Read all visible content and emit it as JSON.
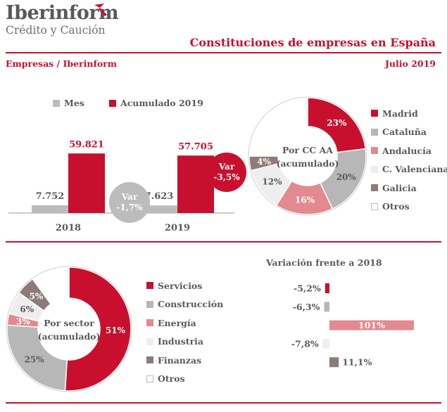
{
  "brand": {
    "name": "Iberinform",
    "tagline": "Crédito y Caución"
  },
  "header": {
    "title": "Constituciones de empresas en España",
    "source": "Empresas / Iberinform",
    "date": "Julio 2019"
  },
  "colors": {
    "accent": "#c8102e",
    "gray": "#b7b7b7",
    "darkgray": "#58595b"
  },
  "chart_data": [
    {
      "type": "bar",
      "categories": [
        "2018",
        "2019"
      ],
      "series": [
        {
          "name": "Mes",
          "values": [
            7752,
            7623
          ],
          "labels": [
            "7.752",
            "7.623"
          ],
          "color": "#bcbcbc"
        },
        {
          "name": "Acumulado 2019",
          "values": [
            59821,
            57705
          ],
          "labels": [
            "59.821",
            "57.705"
          ],
          "color": "#c8102e"
        }
      ],
      "ylim": [
        0,
        60000
      ],
      "annotations": [
        {
          "label": "Var",
          "value": "-1,7%",
          "style": "gray"
        },
        {
          "label": "Var",
          "value": "-3,5%",
          "style": "red"
        }
      ]
    },
    {
      "type": "pie",
      "center_label": [
        "Por CC AA",
        "(acumulado)"
      ],
      "categories": [
        "Madrid",
        "Cataluña",
        "Andalucía",
        "C. Valenciana",
        "Galicia",
        "Otros"
      ],
      "values": [
        23,
        20,
        16,
        12,
        4,
        25
      ],
      "labels": [
        "23%",
        "20%",
        "16%",
        "12%",
        "4%",
        ""
      ],
      "colors": [
        "#c8102e",
        "#b7b7b7",
        "#e28a8f",
        "#eeeeee",
        "#8c7b79",
        "#ffffff"
      ],
      "legend": "right"
    },
    {
      "type": "pie",
      "center_label": [
        "Por sector",
        "(acumulado)"
      ],
      "categories": [
        "Servicios",
        "Construcción",
        "Energía",
        "Industria",
        "Finanzas",
        "Otros"
      ],
      "values": [
        51,
        25,
        3,
        6,
        5,
        10
      ],
      "labels": [
        "51%",
        "25%",
        "3%",
        "6%",
        "5%",
        ""
      ],
      "colors": [
        "#c8102e",
        "#b7b7b7",
        "#e28a8f",
        "#eeeeee",
        "#8c7b79",
        "#ffffff"
      ],
      "legend": "right"
    },
    {
      "type": "bar",
      "orientation": "horizontal",
      "title": "Variación frente a 2018",
      "categories": [
        "Servicios",
        "Construcción",
        "Energía",
        "Industria",
        "Finanzas"
      ],
      "values": [
        -5.2,
        -6.3,
        101,
        -7.8,
        11.1
      ],
      "labels": [
        "-5,2%",
        "-6,3%",
        "101%",
        "-7,8%",
        "11,1%"
      ],
      "colors": [
        "#c8102e",
        "#b7b7b7",
        "#e28a8f",
        "#eeeeee",
        "#8c7b79"
      ]
    }
  ]
}
